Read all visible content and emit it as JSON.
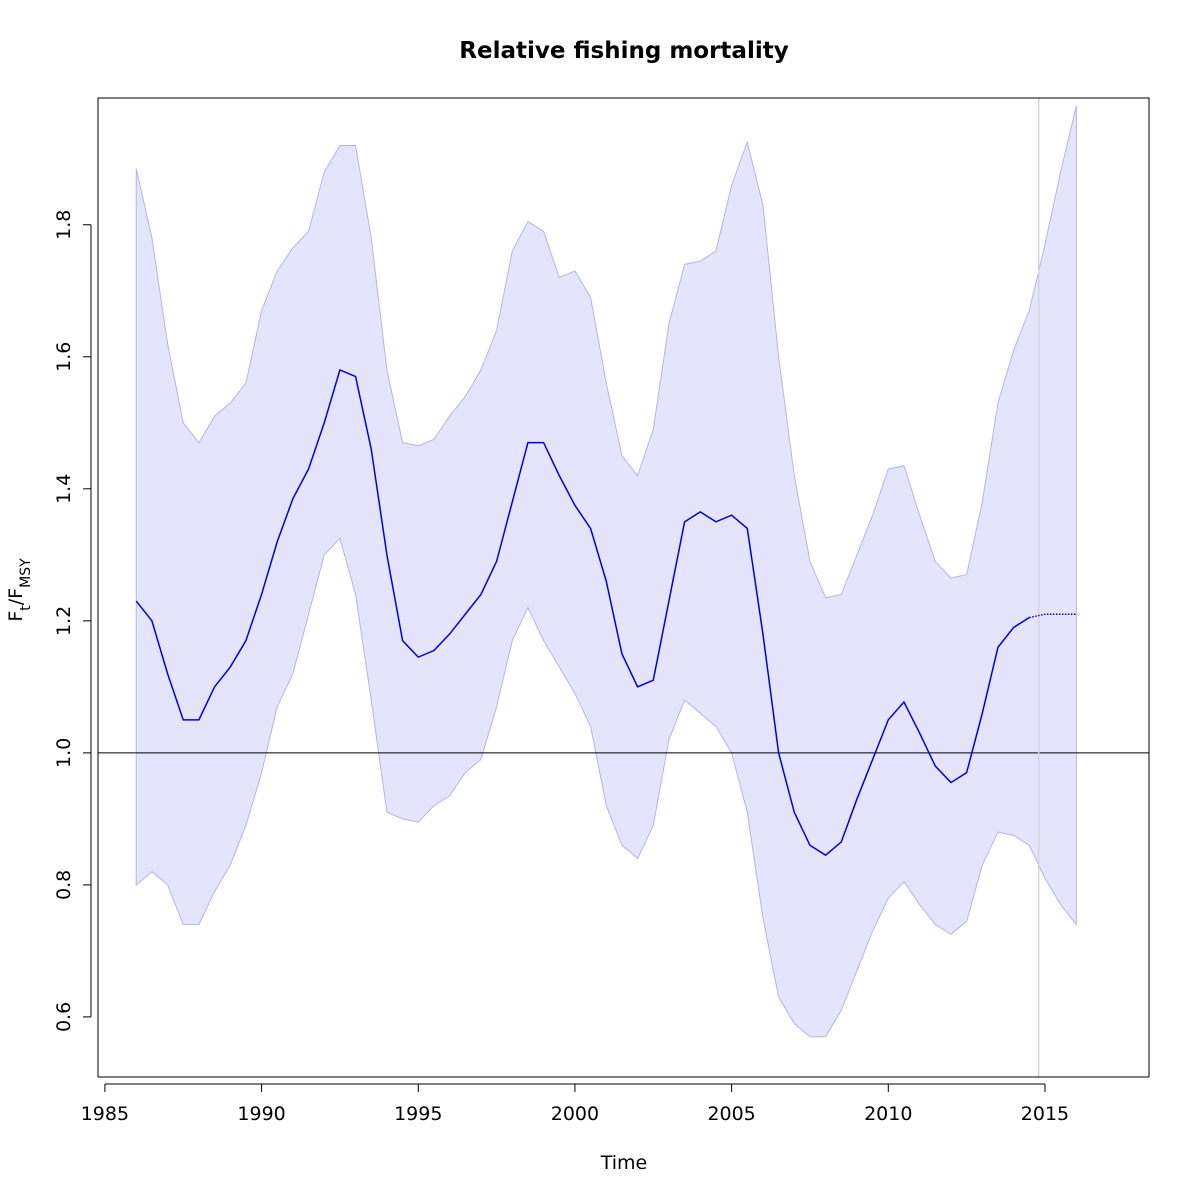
{
  "chart_data": {
    "type": "band-line",
    "title": "Relative fishing mortality",
    "xlabel": "Time",
    "ylabel": [
      "F",
      "t",
      "/F",
      "MSY"
    ],
    "x": [
      1986,
      1986.5,
      1987,
      1987.5,
      1988,
      1988.5,
      1989,
      1989.5,
      1990,
      1990.5,
      1991,
      1991.5,
      1992,
      1992.5,
      1993,
      1993.5,
      1994,
      1994.5,
      1995,
      1995.5,
      1996,
      1996.5,
      1997,
      1997.5,
      1998,
      1998.5,
      1999,
      1999.5,
      2000,
      2000.5,
      2001,
      2001.5,
      2002,
      2002.5,
      2003,
      2003.5,
      2004,
      2004.5,
      2005,
      2005.5,
      2006,
      2006.5,
      2007,
      2007.5,
      2008,
      2008.5,
      2009,
      2009.5,
      2010,
      2010.5,
      2011,
      2011.5,
      2012,
      2012.5,
      2013,
      2013.5,
      2014,
      2014.5,
      2015,
      2015.5,
      2016
    ],
    "estimate": {
      "color": "#0000e0",
      "values": [
        1.23,
        1.2,
        1.12,
        1.05,
        1.05,
        1.1,
        1.13,
        1.17,
        1.24,
        1.32,
        1.385,
        1.43,
        1.5,
        1.58,
        1.57,
        1.46,
        1.3,
        1.17,
        1.145,
        1.155,
        1.18,
        1.21,
        1.24,
        1.29,
        1.38,
        1.47,
        1.47,
        1.42,
        1.375,
        1.34,
        1.26,
        1.15,
        1.1,
        1.11,
        1.23,
        1.35,
        1.365,
        1.35,
        1.36,
        1.34,
        1.18,
        1.0,
        0.91,
        0.86,
        0.845,
        0.865,
        0.93,
        0.99,
        1.05,
        1.077,
        1.03,
        0.98,
        0.955,
        0.97,
        1.06,
        1.16,
        1.19,
        1.205,
        null,
        null,
        null
      ]
    },
    "projection": {
      "color": "#0000e0",
      "values": [
        null,
        null,
        null,
        null,
        null,
        null,
        null,
        null,
        null,
        null,
        null,
        null,
        null,
        null,
        null,
        null,
        null,
        null,
        null,
        null,
        null,
        null,
        null,
        null,
        null,
        null,
        null,
        null,
        null,
        null,
        null,
        null,
        null,
        null,
        null,
        null,
        null,
        null,
        null,
        null,
        null,
        null,
        null,
        null,
        null,
        null,
        null,
        null,
        null,
        null,
        null,
        null,
        null,
        null,
        null,
        null,
        null,
        1.205,
        1.21,
        1.21,
        1.21
      ]
    },
    "upper": [
      1.885,
      1.78,
      1.62,
      1.5,
      1.47,
      1.51,
      1.53,
      1.56,
      1.67,
      1.73,
      1.765,
      1.79,
      1.88,
      1.92,
      1.92,
      1.78,
      1.58,
      1.47,
      1.465,
      1.475,
      1.51,
      1.54,
      1.58,
      1.64,
      1.76,
      1.805,
      1.79,
      1.72,
      1.73,
      1.69,
      1.56,
      1.45,
      1.42,
      1.49,
      1.65,
      1.74,
      1.745,
      1.76,
      1.86,
      1.925,
      1.83,
      1.6,
      1.42,
      1.29,
      1.235,
      1.24,
      1.3,
      1.36,
      1.43,
      1.435,
      1.36,
      1.29,
      1.265,
      1.27,
      1.38,
      1.53,
      1.61,
      1.67,
      1.77,
      1.88,
      1.98
    ],
    "lower": [
      0.8,
      0.82,
      0.8,
      0.74,
      0.74,
      0.79,
      0.83,
      0.89,
      0.97,
      1.07,
      1.12,
      1.21,
      1.3,
      1.325,
      1.24,
      1.08,
      0.91,
      0.9,
      0.895,
      0.92,
      0.935,
      0.97,
      0.99,
      1.07,
      1.17,
      1.22,
      1.17,
      1.13,
      1.09,
      1.04,
      0.92,
      0.86,
      0.84,
      0.89,
      1.02,
      1.08,
      1.06,
      1.04,
      1.0,
      0.91,
      0.75,
      0.63,
      0.59,
      0.57,
      0.57,
      0.61,
      0.67,
      0.73,
      0.78,
      0.805,
      0.77,
      0.74,
      0.725,
      0.745,
      0.83,
      0.88,
      0.875,
      0.86,
      0.81,
      0.77,
      0.74
    ],
    "band_color": "#e4e4fc",
    "band_edge": "#b4b4ee",
    "hline": 1,
    "vline": 2014.8,
    "xlim": [
      1984.78,
      2018.32
    ],
    "ylim": [
      0.509,
      1.992
    ],
    "xticks": [
      1985,
      1990,
      1995,
      2000,
      2005,
      2010,
      2015
    ],
    "yticks": [
      0.6,
      0.8,
      {
        "value": 1,
        "label": "1.0"
      },
      1.2,
      1.4,
      1.6,
      1.8
    ]
  }
}
